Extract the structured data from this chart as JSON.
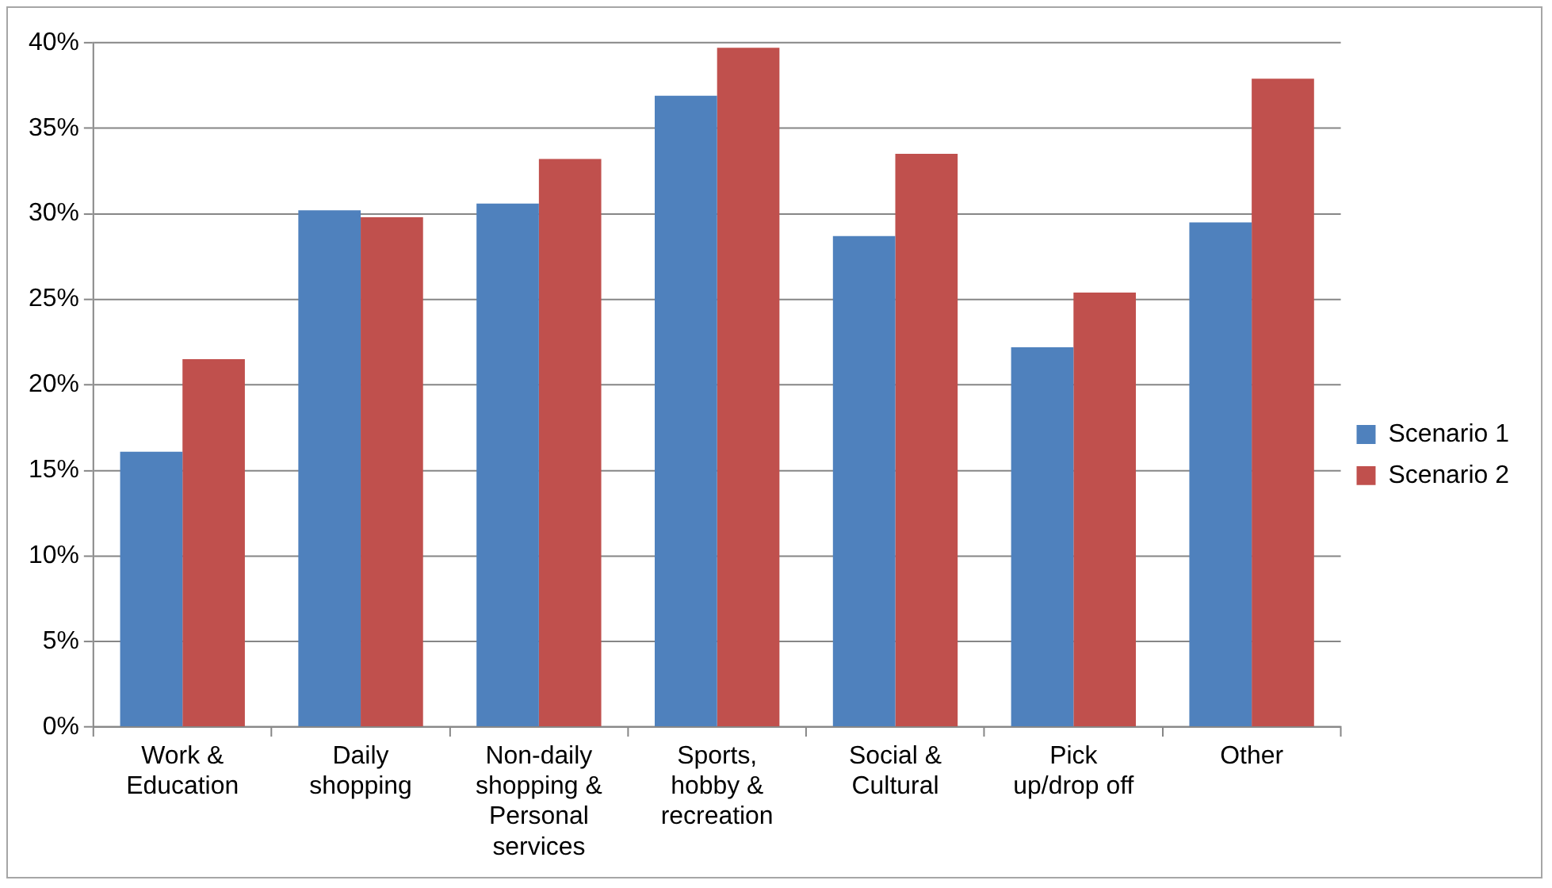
{
  "chart_data": {
    "type": "bar",
    "categories": [
      "Work & Education",
      "Daily shopping",
      "Non-daily shopping & Personal services",
      "Sports, hobby & recreation",
      "Social & Cultural",
      "Pick up/drop off",
      "Other"
    ],
    "series": [
      {
        "name": "Scenario 1",
        "color": "#4f81bd",
        "values": [
          16.1,
          30.2,
          30.6,
          36.9,
          28.7,
          22.2,
          29.5
        ]
      },
      {
        "name": "Scenario 2",
        "color": "#c0504d",
        "values": [
          21.5,
          29.8,
          33.2,
          39.7,
          33.5,
          25.4,
          37.9
        ]
      }
    ],
    "ylim": [
      0,
      40
    ],
    "yticks": [
      {
        "value": 0,
        "label": "0%"
      },
      {
        "value": 5,
        "label": "5%"
      },
      {
        "value": 10,
        "label": "10%"
      },
      {
        "value": 15,
        "label": "15%"
      },
      {
        "value": 20,
        "label": "20%"
      },
      {
        "value": 25,
        "label": "25%"
      },
      {
        "value": 30,
        "label": "30%"
      },
      {
        "value": 35,
        "label": "35%"
      },
      {
        "value": 40,
        "label": "40%"
      }
    ],
    "grid": "y",
    "legend": "right"
  }
}
